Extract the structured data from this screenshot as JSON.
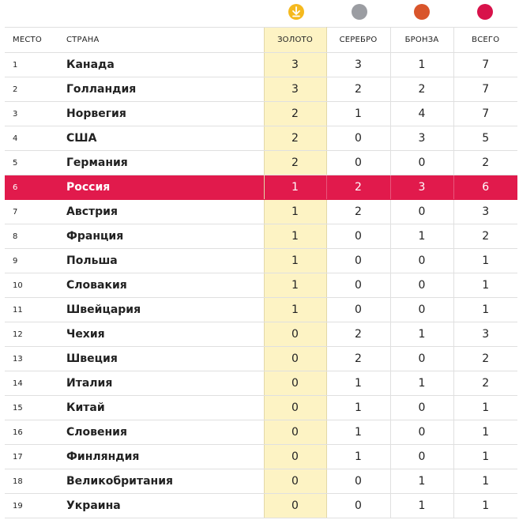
{
  "medal_icons": {
    "gold": {
      "icon": "medal-gold-icon",
      "color": "#f5b91e"
    },
    "silver": {
      "icon": "medal-silver-icon",
      "color": "#9b9da2"
    },
    "bronze": {
      "icon": "medal-bronze-icon",
      "color": "#d9552b"
    },
    "total": {
      "icon": "medal-total-icon",
      "color": "#d8124a"
    }
  },
  "headers": {
    "place": "МЕСТО",
    "country": "СТРАНА",
    "gold": "ЗОЛОТО",
    "silver": "СЕРЕБРО",
    "bronze": "БРОНЗА",
    "total": "ВСЕГО"
  },
  "highlight_color": "#e11a4c",
  "gold_column_color": "#fdf3c4",
  "rows": [
    {
      "place": "1",
      "country": "Канада",
      "gold": "3",
      "silver": "3",
      "bronze": "1",
      "total": "7"
    },
    {
      "place": "2",
      "country": "Голландия",
      "gold": "3",
      "silver": "2",
      "bronze": "2",
      "total": "7"
    },
    {
      "place": "3",
      "country": "Норвегия",
      "gold": "2",
      "silver": "1",
      "bronze": "4",
      "total": "7"
    },
    {
      "place": "4",
      "country": "США",
      "gold": "2",
      "silver": "0",
      "bronze": "3",
      "total": "5"
    },
    {
      "place": "5",
      "country": "Германия",
      "gold": "2",
      "silver": "0",
      "bronze": "0",
      "total": "2"
    },
    {
      "place": "6",
      "country": "Россия",
      "gold": "1",
      "silver": "2",
      "bronze": "3",
      "total": "6",
      "highlight": true
    },
    {
      "place": "7",
      "country": "Австрия",
      "gold": "1",
      "silver": "2",
      "bronze": "0",
      "total": "3"
    },
    {
      "place": "8",
      "country": "Франция",
      "gold": "1",
      "silver": "0",
      "bronze": "1",
      "total": "2"
    },
    {
      "place": "9",
      "country": "Польша",
      "gold": "1",
      "silver": "0",
      "bronze": "0",
      "total": "1"
    },
    {
      "place": "10",
      "country": "Словакия",
      "gold": "1",
      "silver": "0",
      "bronze": "0",
      "total": "1"
    },
    {
      "place": "11",
      "country": "Швейцария",
      "gold": "1",
      "silver": "0",
      "bronze": "0",
      "total": "1"
    },
    {
      "place": "12",
      "country": "Чехия",
      "gold": "0",
      "silver": "2",
      "bronze": "1",
      "total": "3"
    },
    {
      "place": "13",
      "country": "Швеция",
      "gold": "0",
      "silver": "2",
      "bronze": "0",
      "total": "2"
    },
    {
      "place": "14",
      "country": "Италия",
      "gold": "0",
      "silver": "1",
      "bronze": "1",
      "total": "2"
    },
    {
      "place": "15",
      "country": "Китай",
      "gold": "0",
      "silver": "1",
      "bronze": "0",
      "total": "1"
    },
    {
      "place": "16",
      "country": "Словения",
      "gold": "0",
      "silver": "1",
      "bronze": "0",
      "total": "1"
    },
    {
      "place": "17",
      "country": "Финляндия",
      "gold": "0",
      "silver": "1",
      "bronze": "0",
      "total": "1"
    },
    {
      "place": "18",
      "country": "Великобритания",
      "gold": "0",
      "silver": "0",
      "bronze": "1",
      "total": "1"
    },
    {
      "place": "19",
      "country": "Украина",
      "gold": "0",
      "silver": "0",
      "bronze": "1",
      "total": "1"
    }
  ]
}
